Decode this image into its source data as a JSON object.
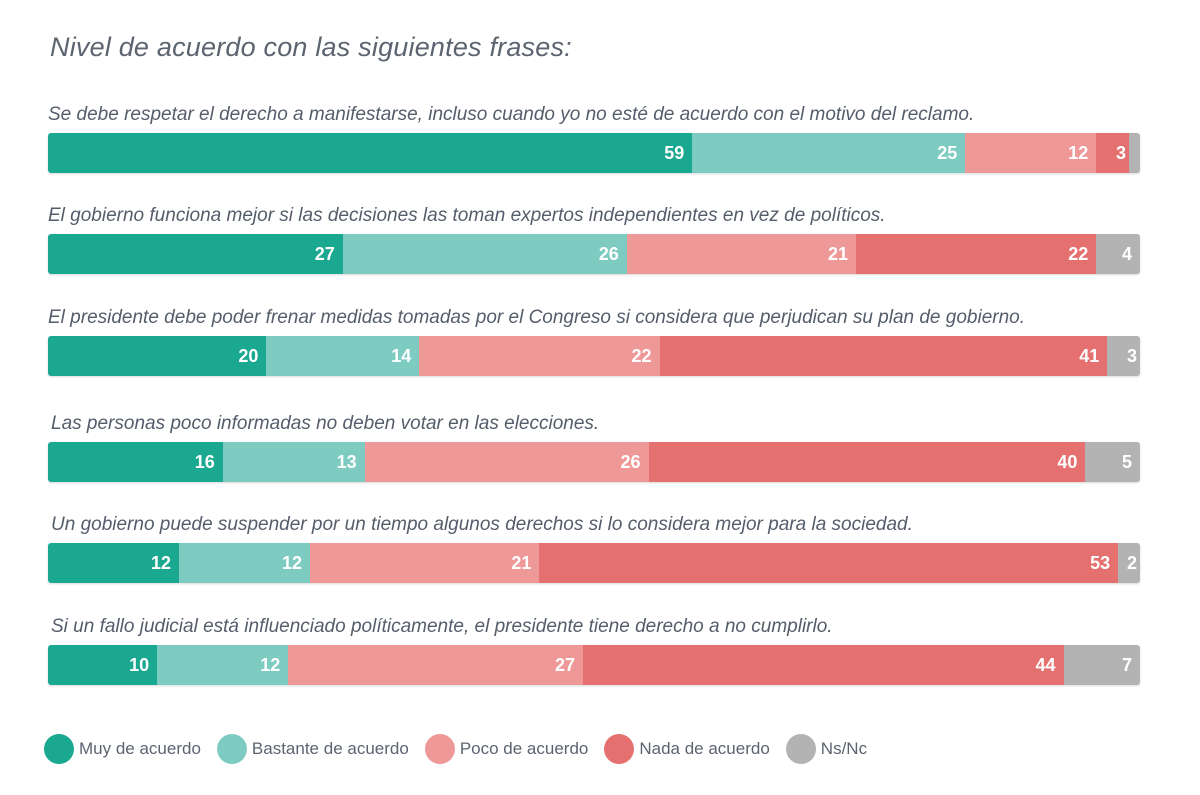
{
  "title": "Nivel de acuerdo con las siguientes frases:",
  "colors": {
    "muy": "#1aa891",
    "bastante": "#7ecbc2",
    "poco": "#ef9898",
    "nada": "#e57070",
    "nsnc": "#b3b3b3"
  },
  "legend": [
    {
      "label": "Muy de acuerdo",
      "color": "#1aa891"
    },
    {
      "label": "Bastante de acuerdo",
      "color": "#7ecbc2"
    },
    {
      "label": "Poco de acuerdo",
      "color": "#ef9898"
    },
    {
      "label": "Nada de acuerdo",
      "color": "#e57070"
    },
    {
      "label": "Ns/Nc",
      "color": "#b3b3b3"
    }
  ],
  "rows": [
    {
      "question": "Se debe respetar el derecho a manifestarse, incluso cuando yo no esté de acuerdo con el motivo del reclamo.",
      "values": [
        59,
        25,
        12,
        3,
        1
      ],
      "labels": [
        "59",
        "25",
        "12",
        "3",
        ""
      ]
    },
    {
      "question": "El gobierno funciona mejor si las decisiones las toman expertos independientes en vez de políticos.",
      "values": [
        27,
        26,
        21,
        22,
        4
      ],
      "labels": [
        "27",
        "26",
        "21",
        "22",
        "4"
      ]
    },
    {
      "question": "El presidente debe poder frenar medidas tomadas por el Congreso si considera que perjudican su plan de gobierno.",
      "values": [
        20,
        14,
        22,
        41,
        3
      ],
      "labels": [
        "20",
        "14",
        "22",
        "41",
        "3"
      ]
    },
    {
      "question": "Las personas poco informadas no deben votar en las elecciones.",
      "values": [
        16,
        13,
        26,
        40,
        5
      ],
      "labels": [
        "16",
        "13",
        "26",
        "40",
        "5"
      ]
    },
    {
      "question": "Un gobierno puede suspender por un tiempo algunos derechos si lo considera mejor para la sociedad.",
      "values": [
        12,
        12,
        21,
        53,
        2
      ],
      "labels": [
        "12",
        "12",
        "21",
        "53",
        "2"
      ]
    },
    {
      "question": "Si un fallo judicial está influenciado políticamente, el presidente tiene derecho a no cumplirlo.",
      "values": [
        10,
        12,
        27,
        44,
        7
      ],
      "labels": [
        "10",
        "12",
        "27",
        "44",
        "7"
      ]
    }
  ],
  "chart_data": {
    "type": "bar",
    "orientation": "horizontal",
    "stacked": true,
    "title": "Nivel de acuerdo con las siguientes frases:",
    "xlabel": "",
    "ylabel": "",
    "xlim": [
      0,
      100
    ],
    "grid": false,
    "legend_position": "bottom",
    "categories": [
      "Se debe respetar el derecho a manifestarse, incluso cuando yo no esté de acuerdo con el motivo del reclamo.",
      "El gobierno funciona mejor si las decisiones las toman expertos independientes en vez de políticos.",
      "El presidente debe poder frenar medidas tomadas por el Congreso si considera que perjudican su plan de gobierno.",
      "Las personas poco informadas no deben votar en las elecciones.",
      "Un gobierno puede suspender por un tiempo algunos derechos si lo considera mejor para la sociedad.",
      "Si un fallo judicial está influenciado políticamente, el presidente tiene derecho a no cumplirlo."
    ],
    "series": [
      {
        "name": "Muy de acuerdo",
        "color": "#1aa891",
        "values": [
          59,
          27,
          20,
          16,
          12,
          10
        ]
      },
      {
        "name": "Bastante de acuerdo",
        "color": "#7ecbc2",
        "values": [
          25,
          26,
          14,
          13,
          12,
          12
        ]
      },
      {
        "name": "Poco de acuerdo",
        "color": "#ef9898",
        "values": [
          12,
          21,
          22,
          26,
          21,
          27
        ]
      },
      {
        "name": "Nada de acuerdo",
        "color": "#e57070",
        "values": [
          3,
          22,
          41,
          40,
          53,
          44
        ]
      },
      {
        "name": "Ns/Nc",
        "color": "#b3b3b3",
        "values": [
          1,
          4,
          3,
          5,
          2,
          7
        ]
      }
    ]
  }
}
